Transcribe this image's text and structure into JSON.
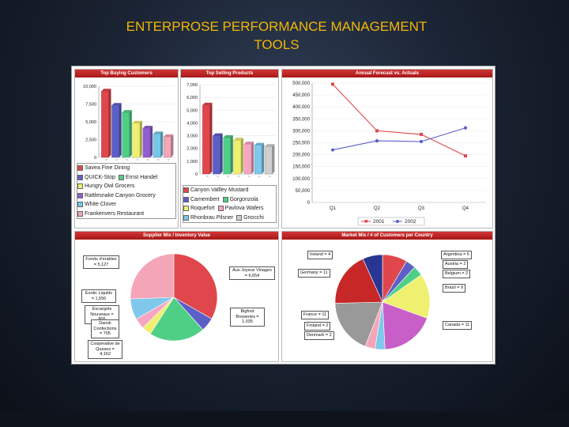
{
  "slide": {
    "title_line1": "ENTERPROSE PERFORMANCE MANAGEMENT",
    "title_line2": "TOOLS"
  },
  "colors": {
    "header_red": "#c62828",
    "background": "#1b2434",
    "title_text": "#f2b705"
  },
  "chart_data": [
    {
      "id": "top-buying-customers",
      "type": "bar",
      "title": "Top Buying Customers",
      "ylim": [
        0,
        10000
      ],
      "yticks": [
        "0",
        "2,500",
        "5,000",
        "7,500",
        "10,000"
      ],
      "categories": [
        "Savea Fine Dining",
        "QUICK-Stop",
        "Ernst Handel",
        "Hungry Owl Grocers",
        "Rattlesnake Canyon Grocery",
        "White Clover",
        "Frankenvers Restaurant"
      ],
      "values": [
        9300,
        7300,
        6300,
        4800,
        4100,
        3300,
        2900
      ],
      "colors": [
        "#e0474c",
        "#5b5fc7",
        "#4fcf86",
        "#f0f070",
        "#8e5fd0",
        "#74c8e8",
        "#f4a6b8"
      ]
    },
    {
      "id": "top-selling-products",
      "type": "bar",
      "title": "Top Selling Products",
      "ylim": [
        0,
        7000
      ],
      "yticks": [
        "0",
        "1,000",
        "2,000",
        "3,000",
        "4,000",
        "5,000",
        "6,000",
        "7,000"
      ],
      "categories": [
        "Canyon Valley Mustard",
        "Camembert",
        "Gorgonzola",
        "Roquefort",
        "Pavlova Wafers",
        "Rhonbrau Pilsner",
        "Gnocchi"
      ],
      "values": [
        5400,
        3000,
        2850,
        2650,
        2350,
        2250,
        2150
      ],
      "colors": [
        "#e0474c",
        "#5b5fc7",
        "#4fcf86",
        "#f0f070",
        "#f6a6c2",
        "#7fc8ec",
        "#cfcfcf"
      ]
    },
    {
      "id": "annual-forecast",
      "type": "line",
      "title": "Annual Forecast vs. Actuals",
      "categories": [
        "Q1",
        "Q2",
        "Q3",
        "Q4"
      ],
      "ylim": [
        0,
        500000
      ],
      "yticks": [
        "0",
        "50,000",
        "100,000",
        "150,000",
        "200,000",
        "250,000",
        "300,000",
        "350,000",
        "400,000",
        "450,000",
        "500,000"
      ],
      "series": [
        {
          "name": "2001",
          "values": [
            495000,
            300000,
            285000,
            195000
          ],
          "color": "#e0474c"
        },
        {
          "name": "2002",
          "values": [
            220000,
            258000,
            255000,
            312000
          ],
          "color": "#5b5fc7"
        }
      ],
      "legend_position": "bottom"
    },
    {
      "id": "supplier-mix",
      "type": "pie",
      "title": "Supplier Mix / Inventory Value",
      "slices": [
        {
          "label": "Aux Joyeux Vinages = 6,654",
          "value": 6654,
          "color": "#e0474c"
        },
        {
          "label": "Bigfoot Breweries = 1,035",
          "value": 1035,
          "color": "#5b5fc7"
        },
        {
          "label": "Cooperative de Queses = 4,162",
          "value": 4162,
          "color": "#4fcf86"
        },
        {
          "label": "Dansk Confections = 705",
          "value": 705,
          "color": "#f0f070"
        },
        {
          "label": "Escargots Nouveaux = 805",
          "value": 805,
          "color": "#f6a6c2"
        },
        {
          "label": "Exotic Liquids = 1,556",
          "value": 1556,
          "color": "#7fc8ec"
        },
        {
          "label": "Forets d'erables = 5,127",
          "value": 5127,
          "color": "#f4a6b8"
        }
      ]
    },
    {
      "id": "market-mix",
      "type": "pie",
      "title": "Market Mix / # of Customers per Country",
      "slices": [
        {
          "label": "Argentina = 5",
          "value": 5,
          "color": "#e0474c"
        },
        {
          "label": "Austria = 2",
          "value": 2,
          "color": "#5b5fc7"
        },
        {
          "label": "Belgium = 2",
          "value": 2,
          "color": "#4fcf86"
        },
        {
          "label": "Brazil = 9",
          "value": 9,
          "color": "#f0f070"
        },
        {
          "label": "Canada = 11",
          "value": 11,
          "color": "#c85fc8"
        },
        {
          "label": "Denmark = 2",
          "value": 2,
          "color": "#7fc8ec"
        },
        {
          "label": "Finland = 2",
          "value": 2,
          "color": "#f4a6b8"
        },
        {
          "label": "France = 11",
          "value": 11,
          "color": "#999999"
        },
        {
          "label": "Germany = 11",
          "value": 11,
          "color": "#c62828"
        },
        {
          "label": "Ireland = 4",
          "value": 4,
          "color": "#283593"
        }
      ]
    }
  ],
  "legends": {
    "customers": [
      [
        "Savea Fine Dining"
      ],
      [
        "QUICK-Stop",
        "Ernst Handel"
      ],
      [
        "Hungry Owl  Grocers"
      ],
      [
        "Rattlesnake Canyon Grocery"
      ],
      [
        "White Clover"
      ],
      [
        "Frankenvers Restaurant"
      ]
    ],
    "customers_colors": [
      [
        "#e0474c"
      ],
      [
        "#5b5fc7",
        "#4fcf86"
      ],
      [
        "#f0f070"
      ],
      [
        "#8e5fd0"
      ],
      [
        "#74c8e8"
      ],
      [
        "#f4a6b8"
      ]
    ],
    "products": [
      [
        "Canyon Vallley Mustard"
      ],
      [
        "Camembert",
        "Gorgonzola"
      ],
      [
        "Roquefort",
        "Pavlova Wafers"
      ],
      [
        "Rhonbrau Pilsner",
        "Gnocchi"
      ]
    ],
    "products_colors": [
      [
        "#e0474c"
      ],
      [
        "#5b5fc7",
        "#4fcf86"
      ],
      [
        "#f0f070",
        "#f6a6c2"
      ],
      [
        "#7fc8ec",
        "#cfcfcf"
      ]
    ]
  },
  "callouts": {
    "forets": "Forets d'erables = 5,127",
    "exotic": "Exotic Liquids = 1,556",
    "escargots": "Escargots Nouveaux = 805",
    "dansk": "Dansk Confections = 705",
    "cooperative": "Cooperative de Queses = 4,162",
    "aux": "Aux Joyeux Vinages = 6,654",
    "bigfoot": "Bigfoot Breweries = 1,035",
    "ireland": "Ireland = 4",
    "germany": "Germany = 11",
    "france": "France = 11",
    "finland": "Finland = 2",
    "denmark": "Denmark = 2",
    "argentina": "Argentina = 5",
    "austria": "Austria = 2",
    "belgium": "Belgium = 2",
    "brazil": "Brazil = 9",
    "canada": "Canada = 11"
  }
}
